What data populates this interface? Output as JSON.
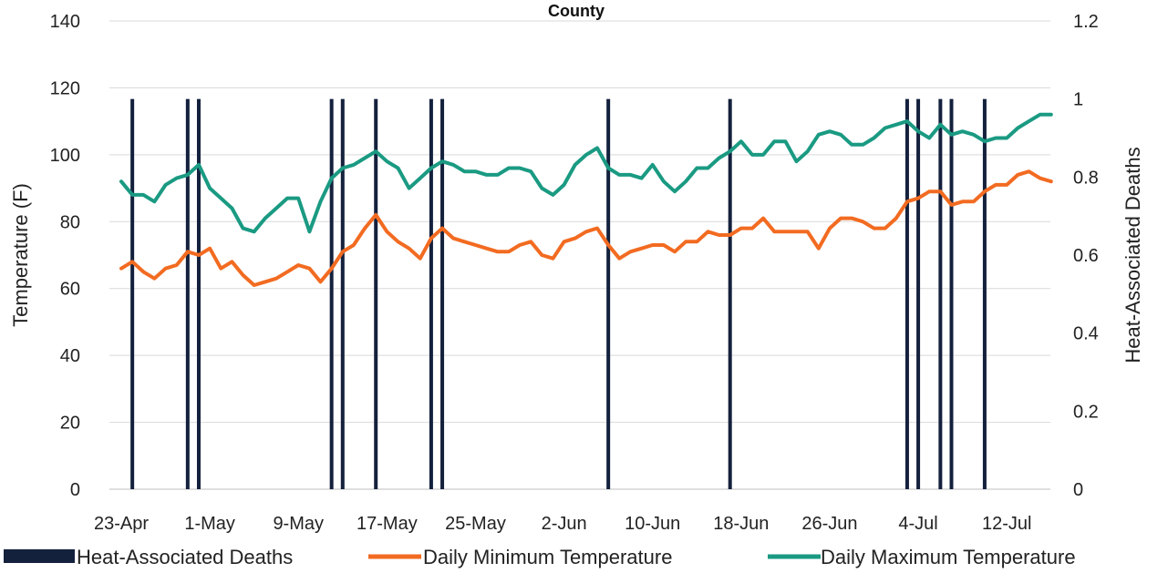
{
  "chart_data": {
    "type": "line",
    "title": "County",
    "ylabel": "Temperature (F)",
    "y2label": "Heat-Associated Deaths",
    "ylim": [
      0,
      140
    ],
    "y2lim": [
      0,
      1.2
    ],
    "yticks": [
      "0",
      "20",
      "40",
      "60",
      "80",
      "100",
      "120",
      "140"
    ],
    "y2ticks": [
      "0",
      "0.2",
      "0.4",
      "0.6",
      "0.8",
      "1",
      "1.2"
    ],
    "xticks": [
      "23-Apr",
      "1-May",
      "9-May",
      "17-May",
      "25-May",
      "2-Jun",
      "10-Jun",
      "18-Jun",
      "26-Jun",
      "4-Jul",
      "12-Jul"
    ],
    "grid": true,
    "legend_position": "bottom",
    "x_start": "23-Apr",
    "x_end": "15-Jul",
    "series": [
      {
        "name": "Heat-Associated Deaths",
        "kind": "bar",
        "axis": "right",
        "color": "#14213d",
        "x": [
          "24-Apr",
          "29-Apr",
          "30-Apr",
          "12-May",
          "13-May",
          "16-May",
          "21-May",
          "22-May",
          "6-Jun",
          "17-Jun",
          "3-Jul",
          "4-Jul",
          "6-Jul",
          "7-Jul",
          "10-Jul"
        ],
        "values": [
          1,
          1,
          1,
          1,
          1,
          1,
          1,
          1,
          1,
          1,
          1,
          1,
          1,
          1,
          1
        ]
      },
      {
        "name": "Daily Minimum Temperature",
        "kind": "line",
        "axis": "left",
        "color": "#f26b21",
        "values": [
          66,
          68,
          65,
          63,
          66,
          67,
          71,
          70,
          72,
          66,
          68,
          64,
          61,
          62,
          63,
          65,
          67,
          66,
          62,
          66,
          71,
          73,
          78,
          82,
          77,
          74,
          72,
          69,
          75,
          78,
          75,
          74,
          73,
          72,
          71,
          71,
          73,
          74,
          70,
          69,
          74,
          75,
          77,
          78,
          73,
          69,
          71,
          72,
          73,
          73,
          71,
          74,
          74,
          77,
          76,
          76,
          78,
          78,
          81,
          77,
          77,
          77,
          77,
          72,
          78,
          81,
          81,
          80,
          78,
          78,
          81,
          86,
          87,
          89,
          89,
          85,
          86,
          86,
          89,
          91,
          91,
          94,
          95,
          93,
          92
        ]
      },
      {
        "name": "Daily Maximum Temperature",
        "kind": "line",
        "axis": "left",
        "color": "#1a9a82",
        "values": [
          92,
          88,
          88,
          86,
          91,
          93,
          94,
          97,
          90,
          87,
          84,
          78,
          77,
          81,
          84,
          87,
          87,
          77,
          86,
          93,
          96,
          97,
          99,
          101,
          98,
          96,
          90,
          93,
          96,
          98,
          97,
          95,
          95,
          94,
          94,
          96,
          96,
          95,
          90,
          88,
          91,
          97,
          100,
          102,
          96,
          94,
          94,
          93,
          97,
          92,
          89,
          92,
          96,
          96,
          99,
          101,
          104,
          100,
          100,
          104,
          104,
          98,
          101,
          106,
          107,
          106,
          103,
          103,
          105,
          108,
          109,
          110,
          107,
          105,
          109,
          106,
          107,
          106,
          104,
          105,
          105,
          108,
          110,
          112,
          112
        ]
      }
    ]
  }
}
